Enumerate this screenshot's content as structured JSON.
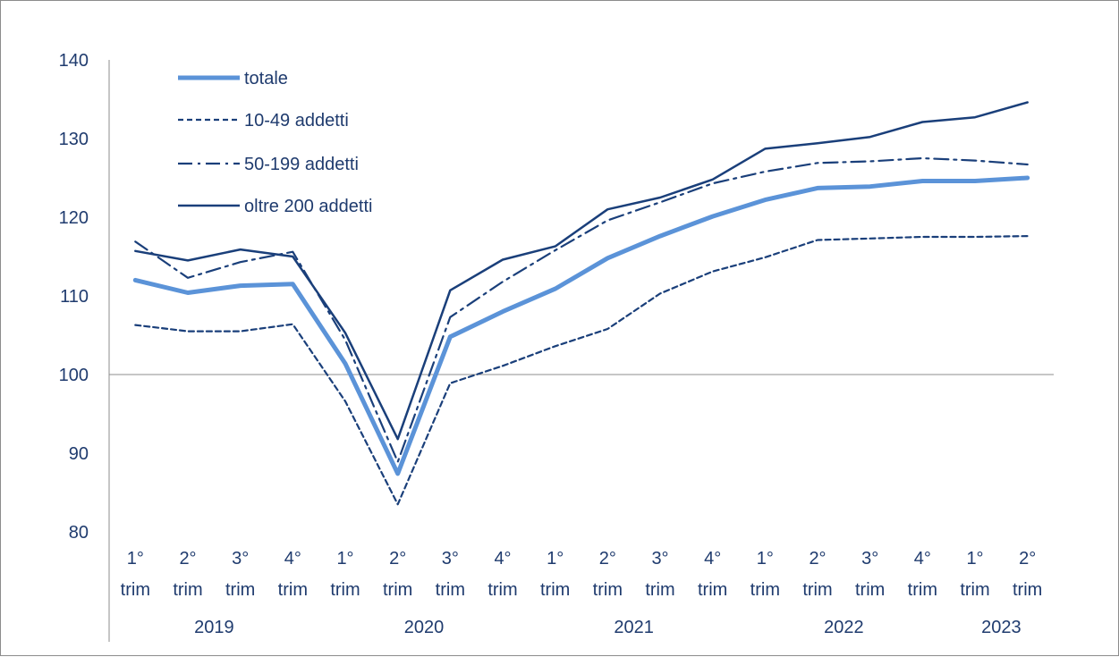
{
  "chart_data": {
    "type": "line",
    "title": "",
    "xlabel": "",
    "ylabel": "",
    "ylim": [
      80,
      140
    ],
    "yticks": [
      "80",
      "90",
      "100",
      "110",
      "120",
      "130",
      "140"
    ],
    "reference_line": 100,
    "categories": [
      {
        "quarter": "1°",
        "unit": "trim"
      },
      {
        "quarter": "2°",
        "unit": "trim"
      },
      {
        "quarter": "3°",
        "unit": "trim"
      },
      {
        "quarter": "4°",
        "unit": "trim"
      },
      {
        "quarter": "1°",
        "unit": "trim"
      },
      {
        "quarter": "2°",
        "unit": "trim"
      },
      {
        "quarter": "3°",
        "unit": "trim"
      },
      {
        "quarter": "4°",
        "unit": "trim"
      },
      {
        "quarter": "1°",
        "unit": "trim"
      },
      {
        "quarter": "2°",
        "unit": "trim"
      },
      {
        "quarter": "3°",
        "unit": "trim"
      },
      {
        "quarter": "4°",
        "unit": "trim"
      },
      {
        "quarter": "1°",
        "unit": "trim"
      },
      {
        "quarter": "2°",
        "unit": "trim"
      },
      {
        "quarter": "3°",
        "unit": "trim"
      },
      {
        "quarter": "4°",
        "unit": "trim"
      },
      {
        "quarter": "1°",
        "unit": "trim"
      },
      {
        "quarter": "2°",
        "unit": "trim"
      }
    ],
    "years": [
      {
        "label": "2019",
        "start": 0,
        "count": 4
      },
      {
        "label": "2020",
        "start": 4,
        "count": 4
      },
      {
        "label": "2021",
        "start": 8,
        "count": 4
      },
      {
        "label": "2022",
        "start": 12,
        "count": 4
      },
      {
        "label": "2023",
        "start": 16,
        "count": 2
      }
    ],
    "legend_position": "top-left",
    "series": [
      {
        "name": "totale",
        "color": "#5b93d8",
        "style": "solid-thick",
        "values": [
          112.0,
          110.4,
          111.3,
          111.5,
          101.4,
          87.4,
          104.8,
          108.0,
          110.9,
          114.8,
          117.6,
          120.1,
          122.2,
          123.7,
          123.9,
          124.6,
          124.6,
          125.0
        ]
      },
      {
        "name": "10-49 addetti",
        "color": "#1a3f7a",
        "style": "dashed",
        "values": [
          106.3,
          105.5,
          105.5,
          106.4,
          96.6,
          83.5,
          98.9,
          101.1,
          103.6,
          105.8,
          110.3,
          113.1,
          114.9,
          117.1,
          117.3,
          117.5,
          117.5,
          117.6
        ]
      },
      {
        "name": "50-199 addetti",
        "color": "#1a3f7a",
        "style": "dashdot",
        "values": [
          116.9,
          112.3,
          114.3,
          115.6,
          104.4,
          88.9,
          107.3,
          111.8,
          115.8,
          119.6,
          121.9,
          124.3,
          125.8,
          126.9,
          127.1,
          127.5,
          127.2,
          126.7
        ]
      },
      {
        "name": "oltre 200 addetti",
        "color": "#1a3f7a",
        "style": "solid",
        "values": [
          115.7,
          114.5,
          115.9,
          115.0,
          105.3,
          91.8,
          110.7,
          114.6,
          116.3,
          121.0,
          122.5,
          124.8,
          128.7,
          129.4,
          130.2,
          132.1,
          132.7,
          134.6
        ]
      }
    ]
  }
}
